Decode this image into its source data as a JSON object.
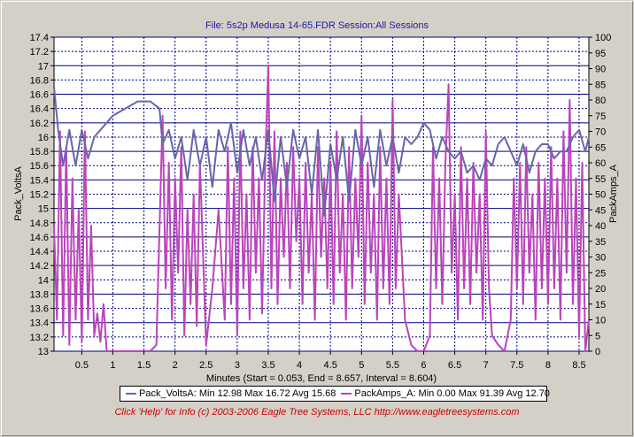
{
  "chart_data": {
    "type": "line",
    "title": "File: 5s2p Medusa 14-65.FDR    Session:All Sessions",
    "xlabel": "Minutes (Start = 0.053,  End = 8.657,  Interval = 8.604)",
    "ylabel": "Pack_VoltsA",
    "y2label": "PackAmps_A",
    "xlim": [
      0.053,
      8.657
    ],
    "ylim": [
      13,
      17.4
    ],
    "y2lim": [
      0,
      100
    ],
    "x_ticks": [
      "0.5",
      "1",
      "1.5",
      "2",
      "2.5",
      "3",
      "3.5",
      "4",
      "4.5",
      "5",
      "5.5",
      "6",
      "6.5",
      "7",
      "7.5",
      "8",
      "8.5"
    ],
    "y_ticks": [
      "13",
      "13.2",
      "13.4",
      "13.6",
      "13.8",
      "14",
      "14.2",
      "14.4",
      "14.6",
      "14.8",
      "15",
      "15.2",
      "15.4",
      "15.6",
      "15.8",
      "16",
      "16.2",
      "16.4",
      "16.6",
      "16.8",
      "17",
      "17.2",
      "17.4"
    ],
    "y2_ticks": [
      "0",
      "5",
      "10",
      "15",
      "20",
      "25",
      "30",
      "35",
      "40",
      "45",
      "50",
      "55",
      "60",
      "65",
      "70",
      "75",
      "80",
      "85",
      "90",
      "95",
      "100"
    ],
    "grid": true,
    "legend_position": "bottom",
    "series": [
      {
        "name": "Pack_VoltsA",
        "axis": "left",
        "color": "#6666aa",
        "legend": "Pack_VoltsA:  Min 12.98 Max 16.72 Avg 15.68",
        "x": [
          0.053,
          0.12,
          0.2,
          0.3,
          0.4,
          0.5,
          0.6,
          0.7,
          0.8,
          0.9,
          1.0,
          1.2,
          1.4,
          1.6,
          1.75,
          1.8,
          1.9,
          2.0,
          2.1,
          2.2,
          2.3,
          2.4,
          2.5,
          2.6,
          2.7,
          2.8,
          2.9,
          3.0,
          3.1,
          3.2,
          3.3,
          3.4,
          3.5,
          3.6,
          3.7,
          3.8,
          3.9,
          4.0,
          4.1,
          4.2,
          4.3,
          4.4,
          4.5,
          4.6,
          4.7,
          4.8,
          4.9,
          5.0,
          5.1,
          5.2,
          5.3,
          5.4,
          5.5,
          5.6,
          5.7,
          5.8,
          5.9,
          6.0,
          6.1,
          6.2,
          6.3,
          6.4,
          6.5,
          6.6,
          6.7,
          6.8,
          6.9,
          7.0,
          7.1,
          7.2,
          7.3,
          7.4,
          7.5,
          7.6,
          7.7,
          7.8,
          7.9,
          8.0,
          8.1,
          8.2,
          8.3,
          8.4,
          8.5,
          8.6,
          8.657
        ],
        "values": [
          16.7,
          16.1,
          15.6,
          16.1,
          15.6,
          16.1,
          15.7,
          16.0,
          16.1,
          16.2,
          16.3,
          16.4,
          16.5,
          16.5,
          16.4,
          15.9,
          16.1,
          15.7,
          16.0,
          15.4,
          16.1,
          15.6,
          16.0,
          15.3,
          16.1,
          15.8,
          16.2,
          15.5,
          16.1,
          15.6,
          16.0,
          15.4,
          16.1,
          15.1,
          16.0,
          15.3,
          16.1,
          15.7,
          16.0,
          15.2,
          16.1,
          14.9,
          15.9,
          15.4,
          16.0,
          15.1,
          16.1,
          15.6,
          16.0,
          15.3,
          16.1,
          15.6,
          16.0,
          15.5,
          16.0,
          15.9,
          16.0,
          16.2,
          16.1,
          15.7,
          16.0,
          15.8,
          15.7,
          15.8,
          15.5,
          15.6,
          15.4,
          15.7,
          15.6,
          15.9,
          16.0,
          15.8,
          15.6,
          15.9,
          15.5,
          15.8,
          15.9,
          15.9,
          15.7,
          15.8,
          15.8,
          16.0,
          16.1,
          15.8,
          16.0
        ]
      },
      {
        "name": "PackAmps_A",
        "axis": "right",
        "color": "#bb44bb",
        "legend": "PackAmps_A:  Min 0.00 Max 91.39 Avg 12.70",
        "x": [
          0.053,
          0.1,
          0.15,
          0.2,
          0.25,
          0.3,
          0.35,
          0.4,
          0.45,
          0.5,
          0.55,
          0.6,
          0.65,
          0.7,
          0.75,
          0.8,
          0.85,
          0.9,
          1.0,
          1.2,
          1.4,
          1.6,
          1.7,
          1.8,
          1.85,
          1.9,
          1.95,
          2.0,
          2.05,
          2.1,
          2.15,
          2.2,
          2.25,
          2.3,
          2.35,
          2.4,
          2.5,
          2.6,
          2.7,
          2.8,
          2.85,
          2.9,
          2.95,
          3.0,
          3.05,
          3.1,
          3.15,
          3.2,
          3.25,
          3.3,
          3.35,
          3.4,
          3.45,
          3.5,
          3.55,
          3.6,
          3.65,
          3.7,
          3.75,
          3.8,
          3.85,
          3.9,
          3.95,
          4.0,
          4.05,
          4.1,
          4.15,
          4.2,
          4.25,
          4.3,
          4.35,
          4.4,
          4.45,
          4.5,
          4.55,
          4.6,
          4.65,
          4.7,
          4.75,
          4.8,
          4.85,
          4.9,
          4.95,
          5.0,
          5.05,
          5.1,
          5.15,
          5.2,
          5.25,
          5.3,
          5.35,
          5.4,
          5.45,
          5.5,
          5.55,
          5.6,
          5.7,
          5.8,
          5.9,
          6.0,
          6.1,
          6.15,
          6.2,
          6.25,
          6.3,
          6.35,
          6.4,
          6.45,
          6.5,
          6.55,
          6.6,
          6.65,
          6.7,
          6.75,
          6.8,
          6.85,
          6.9,
          6.95,
          7.0,
          7.05,
          7.1,
          7.2,
          7.3,
          7.4,
          7.45,
          7.5,
          7.55,
          7.6,
          7.65,
          7.7,
          7.75,
          7.8,
          7.85,
          7.9,
          7.95,
          8.0,
          8.05,
          8.1,
          8.15,
          8.2,
          8.25,
          8.3,
          8.35,
          8.4,
          8.45,
          8.5,
          8.55,
          8.6,
          8.657
        ],
        "values": [
          40,
          10,
          70,
          5,
          65,
          2,
          55,
          10,
          45,
          3,
          70,
          10,
          40,
          5,
          12,
          3,
          15,
          0,
          0,
          0,
          0,
          0,
          2,
          75,
          20,
          60,
          10,
          55,
          25,
          65,
          5,
          45,
          15,
          50,
          8,
          60,
          2,
          20,
          45,
          10,
          65,
          15,
          55,
          5,
          70,
          20,
          50,
          10,
          65,
          25,
          55,
          12,
          60,
          91,
          20,
          70,
          15,
          55,
          30,
          60,
          20,
          65,
          35,
          55,
          15,
          60,
          25,
          50,
          10,
          65,
          30,
          55,
          20,
          60,
          15,
          70,
          25,
          50,
          10,
          65,
          20,
          55,
          30,
          75,
          15,
          60,
          25,
          50,
          10,
          65,
          20,
          55,
          15,
          80,
          20,
          50,
          10,
          2,
          0,
          0,
          5,
          65,
          20,
          55,
          15,
          60,
          85,
          25,
          50,
          10,
          65,
          20,
          55,
          15,
          60,
          25,
          50,
          10,
          70,
          20,
          5,
          2,
          0,
          10,
          55,
          20,
          60,
          15,
          65,
          25,
          50,
          10,
          60,
          20,
          55,
          15,
          65,
          20,
          55,
          10,
          70,
          25,
          80,
          15,
          55,
          5,
          60,
          0,
          10
        ]
      }
    ]
  },
  "legend": {
    "volts": "Pack_VoltsA:  Min 12.98 Max 16.72 Avg 15.68",
    "amps": "PackAmps_A:  Min 0.00 Max 91.39 Avg 12.70"
  },
  "footer": "Click 'Help' for Info  (c) 2003-2006 Eagle Tree Systems, LLC     http://www.eagletreesystems.com"
}
